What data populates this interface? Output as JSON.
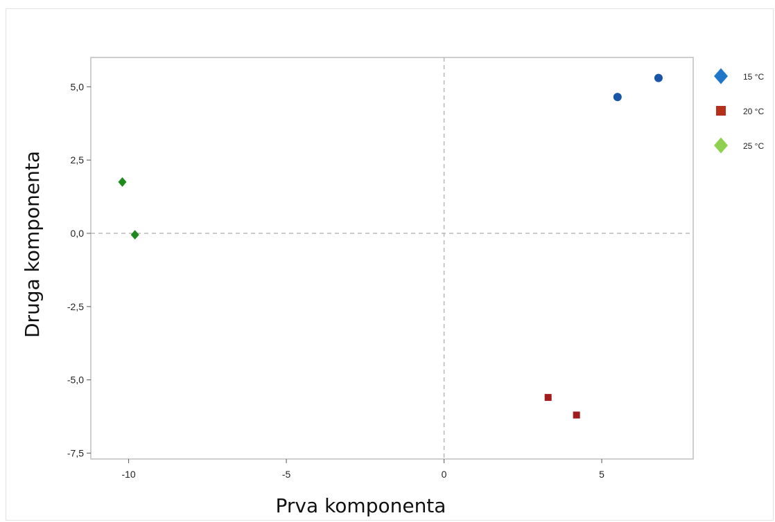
{
  "chart_data": {
    "type": "scatter",
    "xlabel": "Prva komponenta",
    "ylabel": "Druga komponenta",
    "xlim": [
      -11.2,
      7.9
    ],
    "ylim": [
      -7.7,
      6.0
    ],
    "x_ticks": [
      -10,
      -5,
      0,
      5
    ],
    "x_tick_labels": [
      "-10",
      "-5",
      "0",
      "5"
    ],
    "y_ticks": [
      5.0,
      2.5,
      0.0,
      -2.5,
      -5.0,
      -7.5
    ],
    "y_tick_labels": [
      "5,0",
      "2,5",
      "0,0",
      "-2,5",
      "-5,0",
      "-7,5"
    ],
    "reference_lines": {
      "x": 0,
      "y": 0,
      "style": "dashed"
    },
    "grid": false,
    "legend_position": "right",
    "series": [
      {
        "name": "15 °C",
        "marker": "diamond",
        "legend_color": "#1f77c9",
        "point_color": "#1a56a8",
        "point_marker": "circle",
        "points": [
          [
            5.5,
            4.65
          ],
          [
            6.8,
            5.3
          ]
        ]
      },
      {
        "name": "20 °C",
        "marker": "square",
        "legend_color": "#b5301a",
        "point_color": "#a11d1d",
        "point_marker": "square",
        "points": [
          [
            3.3,
            -5.6
          ],
          [
            4.2,
            -6.2
          ]
        ]
      },
      {
        "name": "25 °C",
        "marker": "diamond",
        "legend_color": "#8fd14f",
        "point_color": "#1e8a1e",
        "point_marker": "diamond",
        "points": [
          [
            -10.2,
            1.75
          ],
          [
            -9.8,
            -0.05
          ]
        ]
      }
    ]
  }
}
